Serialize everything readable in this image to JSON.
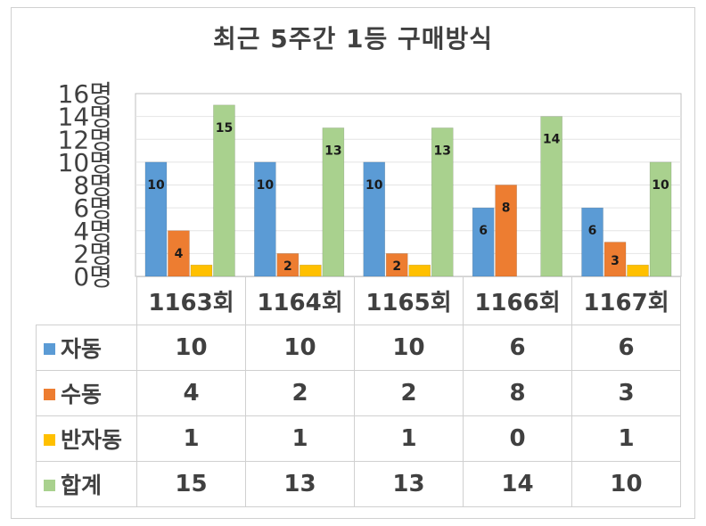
{
  "chart_data": {
    "type": "bar",
    "title": "최근 5주간 1등 구매방식",
    "categories": [
      "1163회",
      "1164회",
      "1165회",
      "1166회",
      "1167회"
    ],
    "series": [
      {
        "name": "자동",
        "values": [
          10,
          10,
          10,
          6,
          6
        ],
        "color": "#5b9bd5",
        "labels": [
          "10",
          "10",
          "10",
          "6",
          "6"
        ]
      },
      {
        "name": "수동",
        "values": [
          4,
          2,
          2,
          8,
          3
        ],
        "color": "#ed7d31",
        "labels": [
          "4",
          "2",
          "2",
          "8",
          "3"
        ]
      },
      {
        "name": "반자동",
        "values": [
          1,
          1,
          1,
          0,
          1
        ],
        "color": "#ffc000",
        "labels": [
          "",
          "",
          "",
          "",
          ""
        ]
      },
      {
        "name": "합계",
        "values": [
          15,
          13,
          13,
          14,
          10
        ],
        "color": "#a9d18e",
        "labels": [
          "15",
          "13",
          "13",
          "14",
          "10"
        ]
      }
    ],
    "ylim": [
      0,
      16
    ],
    "y_ticks": [
      "0명",
      "2명",
      "4명",
      "6명",
      "8명",
      "10명",
      "12명",
      "14명",
      "16명"
    ],
    "grid": true,
    "legend": "data table below chart",
    "table": [
      {
        "label": "자동",
        "cells": [
          "10",
          "10",
          "10",
          "6",
          "6"
        ]
      },
      {
        "label": "수동",
        "cells": [
          "4",
          "2",
          "2",
          "8",
          "3"
        ]
      },
      {
        "label": "반자동",
        "cells": [
          "1",
          "1",
          "1",
          "0",
          "1"
        ]
      },
      {
        "label": "합계",
        "cells": [
          "15",
          "13",
          "13",
          "14",
          "10"
        ]
      }
    ]
  }
}
